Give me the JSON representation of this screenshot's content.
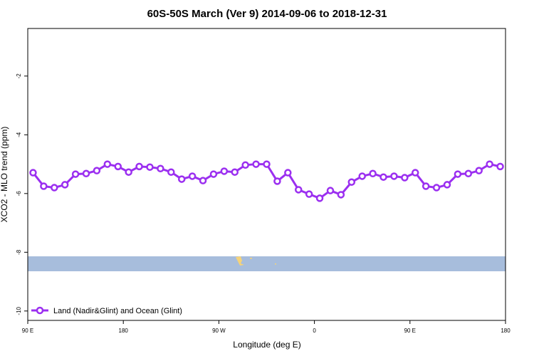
{
  "chart_data": {
    "type": "line",
    "title": "60S-50S March (Ver 9)   2014-09-06 to 2018-12-31",
    "x_label": "Longitude (deg E)",
    "y_label": "XCO2 - MLO trend (ppm)",
    "xlim": [
      90,
      540
    ],
    "ylim": [
      -10.32,
      -0.38
    ],
    "xticks": [
      {
        "value": 90,
        "label": "90 E"
      },
      {
        "value": 180,
        "label": "180"
      },
      {
        "value": 270,
        "label": "90 W"
      },
      {
        "value": 360,
        "label": "0"
      },
      {
        "value": 450,
        "label": "90 E"
      },
      {
        "value": 540,
        "label": "180"
      }
    ],
    "yticks": [
      -10,
      -8,
      -6,
      -4,
      -2
    ],
    "legend": "bottom-left",
    "series": [
      {
        "name": "Land (Nadir&Glint) and Ocean (Glint)",
        "color": "#9b2ff0",
        "x": [
          95,
          105,
          115,
          125,
          135,
          145,
          155,
          165,
          175,
          185,
          195,
          205,
          215,
          225,
          235,
          245,
          255,
          265,
          275,
          285,
          295,
          305,
          315,
          325,
          335,
          345,
          355,
          365,
          375,
          385,
          395,
          405,
          415,
          425,
          435,
          445,
          455,
          465,
          475,
          485,
          495,
          505,
          515,
          525,
          535
        ],
        "values": [
          -5.29,
          -5.75,
          -5.8,
          -5.7,
          -5.34,
          -5.32,
          -5.22,
          -5.0,
          -5.08,
          -5.27,
          -5.08,
          -5.1,
          -5.15,
          -5.27,
          -5.51,
          -5.41,
          -5.56,
          -5.34,
          -5.24,
          -5.27,
          -5.03,
          -5.0,
          -5.0,
          -5.58,
          -5.29,
          -5.87,
          -6.02,
          -6.16,
          -5.9,
          -6.04,
          -5.61,
          -5.41,
          -5.32,
          -5.44,
          -5.41,
          -5.46,
          -5.29,
          -5.75,
          -5.8,
          -5.7,
          -5.34,
          -5.32,
          -5.22,
          -5.0,
          -5.08
        ]
      }
    ]
  }
}
